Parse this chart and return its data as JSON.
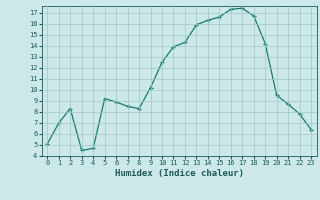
{
  "x": [
    0,
    1,
    2,
    3,
    4,
    5,
    6,
    7,
    8,
    9,
    10,
    11,
    12,
    13,
    14,
    15,
    16,
    17,
    18,
    19,
    20,
    21,
    22,
    23
  ],
  "y": [
    5.1,
    7.0,
    8.3,
    4.5,
    4.7,
    9.2,
    8.9,
    8.5,
    8.3,
    10.2,
    12.5,
    13.9,
    14.3,
    15.9,
    16.3,
    16.6,
    17.3,
    17.4,
    16.7,
    14.2,
    9.5,
    8.7,
    7.8,
    6.4
  ],
  "xlabel": "Humidex (Indice chaleur)",
  "ylim": [
    4,
    17.6
  ],
  "xlim": [
    -0.5,
    23.5
  ],
  "yticks": [
    4,
    5,
    6,
    7,
    8,
    9,
    10,
    11,
    12,
    13,
    14,
    15,
    16,
    17
  ],
  "xticks": [
    0,
    1,
    2,
    3,
    4,
    5,
    6,
    7,
    8,
    9,
    10,
    11,
    12,
    13,
    14,
    15,
    16,
    17,
    18,
    19,
    20,
    21,
    22,
    23
  ],
  "line_color": "#1a7a6e",
  "marker_color": "#1a7a6e",
  "bg_color": "#cce8e8",
  "grid_color": "#a0c8c8",
  "tick_label_color": "#1a5a5a",
  "xlabel_color": "#1a5a5a"
}
